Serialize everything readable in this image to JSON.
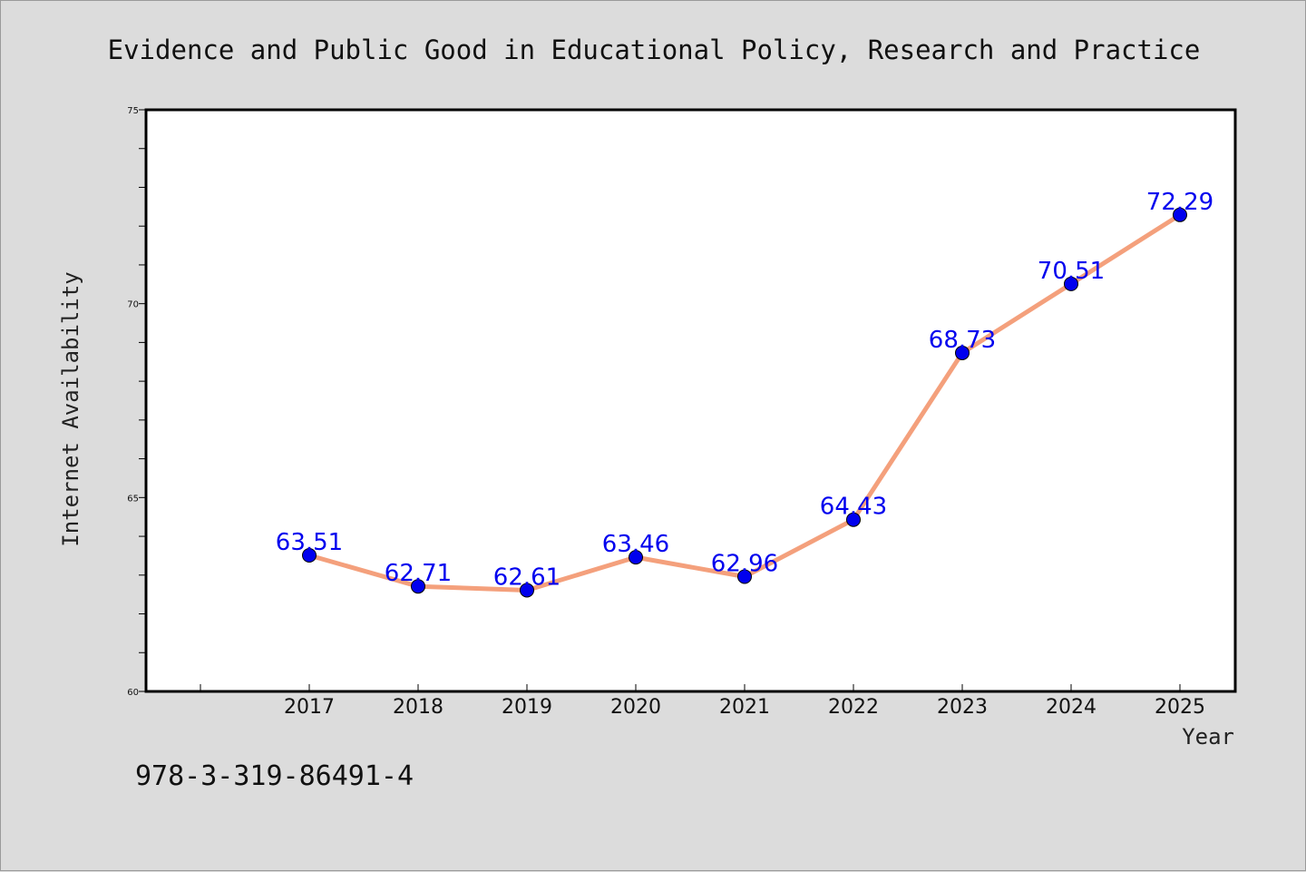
{
  "chart_data": {
    "type": "line",
    "title": "Evidence and Public Good in Educational Policy, Research and Practice",
    "xlabel": "Year",
    "ylabel": "Internet Availability",
    "categories": [
      "2017",
      "2018",
      "2019",
      "2020",
      "2021",
      "2022",
      "2023",
      "2024",
      "2025"
    ],
    "values": [
      63.51,
      62.71,
      62.61,
      63.46,
      62.96,
      64.43,
      68.73,
      70.51,
      72.29
    ],
    "data_labels": [
      "63.51",
      "62.71",
      "62.61",
      "63.46",
      "62.96",
      "64.43",
      "68.73",
      "70.51",
      "72.29"
    ],
    "ylim": [
      60,
      75
    ],
    "yticks": [
      "60",
      "65",
      "70",
      "75"
    ],
    "grid": false,
    "line_color": "#f4a07c",
    "marker_color": "#0000ee",
    "label_color": "#0000ee",
    "background_color": "#dcdcdc",
    "plot_background": "#ffffff"
  },
  "footnote": "978-3-319-86491-4"
}
